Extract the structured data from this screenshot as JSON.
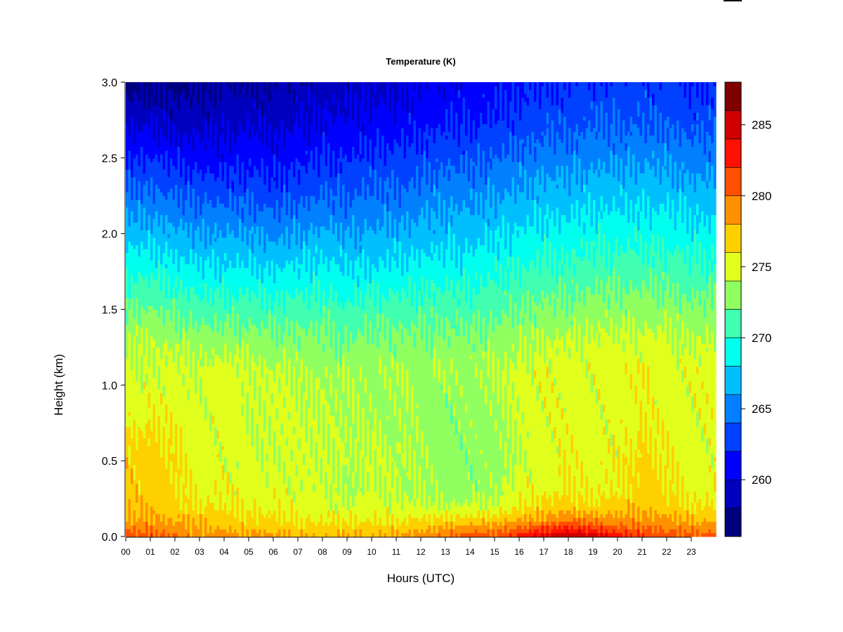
{
  "chart_data": {
    "type": "heatmap",
    "title": "Temperature (K)",
    "xlabel": "Hours (UTC)",
    "ylabel": "Height (km)",
    "xlim": [
      0,
      24
    ],
    "ylim": [
      0.0,
      3.0
    ],
    "x_ticks": [
      "00",
      "01",
      "02",
      "03",
      "04",
      "05",
      "06",
      "07",
      "08",
      "09",
      "10",
      "11",
      "12",
      "13",
      "14",
      "15",
      "16",
      "17",
      "18",
      "19",
      "20",
      "21",
      "22",
      "23"
    ],
    "y_ticks": [
      "0.0",
      "0.5",
      "1.0",
      "1.5",
      "2.0",
      "2.5",
      "3.0"
    ],
    "y_tick_values": [
      0.0,
      0.5,
      1.0,
      1.5,
      2.0,
      2.5,
      3.0
    ],
    "colorbar": {
      "range": [
        256,
        288
      ],
      "step": 2,
      "ticks": [
        "260",
        "265",
        "270",
        "275",
        "280",
        "285"
      ],
      "tick_values": [
        260,
        265,
        270,
        275,
        280,
        285
      ],
      "colors": [
        "#00007f",
        "#0000be",
        "#0000ff",
        "#0040ff",
        "#0080ff",
        "#00bfff",
        "#00ffef",
        "#40ffb0",
        "#90ff60",
        "#e0ff1c",
        "#ffd000",
        "#ff9000",
        "#ff5000",
        "#ff1000",
        "#d00000",
        "#800000"
      ]
    },
    "height_grid_km": [
      0.0,
      0.1,
      0.2,
      0.3,
      0.5,
      0.7,
      0.9,
      1.1,
      1.3,
      1.5,
      1.7,
      1.9,
      2.1,
      2.3,
      2.5,
      2.7,
      2.9,
      3.0
    ],
    "hour_grid": [
      0,
      1,
      2,
      3,
      4,
      5,
      6,
      7,
      8,
      9,
      10,
      11,
      12,
      13,
      14,
      15,
      16,
      17,
      18,
      19,
      20,
      21,
      22,
      23,
      24
    ],
    "temperature_K_profiles": [
      [
        281,
        278.5,
        277.5,
        277,
        277,
        276,
        275,
        274.5,
        274,
        272,
        270,
        268,
        266,
        264,
        262,
        260,
        258,
        257.5
      ],
      [
        281,
        278.5,
        277.5,
        277,
        277,
        276,
        275,
        274.5,
        274,
        272,
        270,
        268,
        266,
        264,
        262,
        260,
        258,
        257.5
      ],
      [
        280,
        278,
        277,
        276.5,
        276.5,
        276,
        275,
        274.5,
        273.5,
        271.5,
        269.5,
        267.5,
        265.5,
        263.5,
        261.5,
        259.5,
        258,
        257.5
      ],
      [
        279,
        277.5,
        276,
        275.5,
        275,
        275,
        274.5,
        274.5,
        273,
        271,
        269,
        267,
        265,
        263,
        261,
        259.5,
        258,
        257.5
      ],
      [
        279,
        277,
        276,
        275.5,
        275,
        275,
        275,
        275,
        273,
        271,
        269,
        267,
        265,
        263,
        261,
        259.5,
        258.5,
        258
      ],
      [
        278.5,
        276.5,
        275.5,
        275,
        274.5,
        274.5,
        274.5,
        274.5,
        273,
        271,
        269,
        267,
        265,
        263,
        261.5,
        260,
        258.5,
        258
      ],
      [
        278.5,
        276.5,
        275.5,
        275,
        274.5,
        274.5,
        274.5,
        274,
        272.5,
        270.5,
        268.5,
        266.5,
        264.5,
        262.5,
        261,
        259.5,
        258.5,
        258
      ],
      [
        278,
        276,
        275,
        274.5,
        274.5,
        274.5,
        274.5,
        274,
        272.5,
        271,
        269,
        267,
        265,
        263,
        261.5,
        260,
        259,
        258.5
      ],
      [
        278,
        276,
        275,
        274.5,
        274.5,
        274.5,
        274,
        273.5,
        272.5,
        271,
        269,
        267.5,
        265.5,
        263.5,
        262,
        260.5,
        259.5,
        259
      ],
      [
        278,
        276,
        274.5,
        273.5,
        274,
        274,
        273.5,
        273.5,
        272,
        270.5,
        268.5,
        267,
        265,
        263.5,
        262,
        260.5,
        259.5,
        259
      ],
      [
        278,
        276,
        275,
        274.5,
        274.5,
        274,
        273.5,
        273.5,
        272.5,
        271,
        269,
        267,
        265.5,
        264,
        262.5,
        261,
        260,
        259.5
      ],
      [
        278,
        276,
        274.5,
        274,
        274,
        273.5,
        273.5,
        273.5,
        272.5,
        271,
        269,
        267.5,
        265.5,
        264,
        262.5,
        261,
        260,
        259.5
      ],
      [
        279,
        276.5,
        274.5,
        273.5,
        273.5,
        273.5,
        273.5,
        273.5,
        272.5,
        271,
        269.5,
        267.5,
        266,
        264.5,
        263,
        261.5,
        260.5,
        260
      ],
      [
        280,
        277,
        274,
        273,
        273,
        273,
        273,
        273.5,
        272.5,
        271.5,
        269.5,
        268,
        266.5,
        265,
        263.5,
        262,
        261,
        260.5
      ],
      [
        281,
        277,
        274.5,
        273,
        273,
        273,
        273,
        273.5,
        272.5,
        271,
        269.5,
        268,
        266.5,
        265,
        263.5,
        262,
        261,
        260.5
      ],
      [
        281,
        277.5,
        274.5,
        273.5,
        273,
        273,
        273.5,
        274,
        273,
        271.5,
        270,
        268.5,
        267,
        265.5,
        264,
        262.5,
        261.5,
        261
      ],
      [
        283,
        278,
        276,
        275,
        274.5,
        274.5,
        274.5,
        274.5,
        273.5,
        272,
        270.5,
        269,
        267.5,
        266,
        264.5,
        263,
        262,
        261.5
      ],
      [
        285,
        279,
        276.5,
        275.5,
        275,
        275,
        275,
        275,
        274,
        272.5,
        271,
        269.5,
        268,
        266.5,
        265,
        263.5,
        262.5,
        262
      ],
      [
        286,
        280,
        277,
        276,
        275.5,
        275,
        275,
        275,
        274,
        272.5,
        271,
        269.5,
        268,
        266.5,
        265,
        263.5,
        262.5,
        262
      ],
      [
        285,
        279.5,
        276.5,
        275.5,
        275,
        275,
        275,
        275,
        274.5,
        273,
        271.5,
        270,
        268.5,
        267,
        265.5,
        264,
        263,
        262.5
      ],
      [
        283,
        279,
        277,
        276,
        275.5,
        275,
        275,
        275,
        274.5,
        273,
        271.5,
        270,
        268.5,
        267,
        265.5,
        264,
        263,
        262.5
      ],
      [
        282,
        279,
        277.5,
        277,
        276.5,
        276,
        275.5,
        275.5,
        274.5,
        273,
        271.5,
        270,
        268.5,
        267,
        265.5,
        264,
        263,
        262.5
      ],
      [
        281,
        278.5,
        277,
        276.5,
        276,
        275.5,
        275,
        275,
        274.5,
        273,
        271.5,
        270,
        268.5,
        267,
        265.5,
        264,
        263,
        262.5
      ],
      [
        281,
        278,
        276,
        275.5,
        275,
        275,
        275,
        275,
        274,
        272.5,
        271,
        269.5,
        268,
        266.5,
        265,
        263.5,
        262.5,
        262
      ],
      [
        281,
        278,
        276,
        275.5,
        275,
        275,
        275,
        275,
        274,
        272.5,
        271,
        269.5,
        268,
        266.5,
        265,
        263.5,
        262.5,
        262
      ]
    ],
    "grid": false,
    "legend": "colorbar-right"
  }
}
